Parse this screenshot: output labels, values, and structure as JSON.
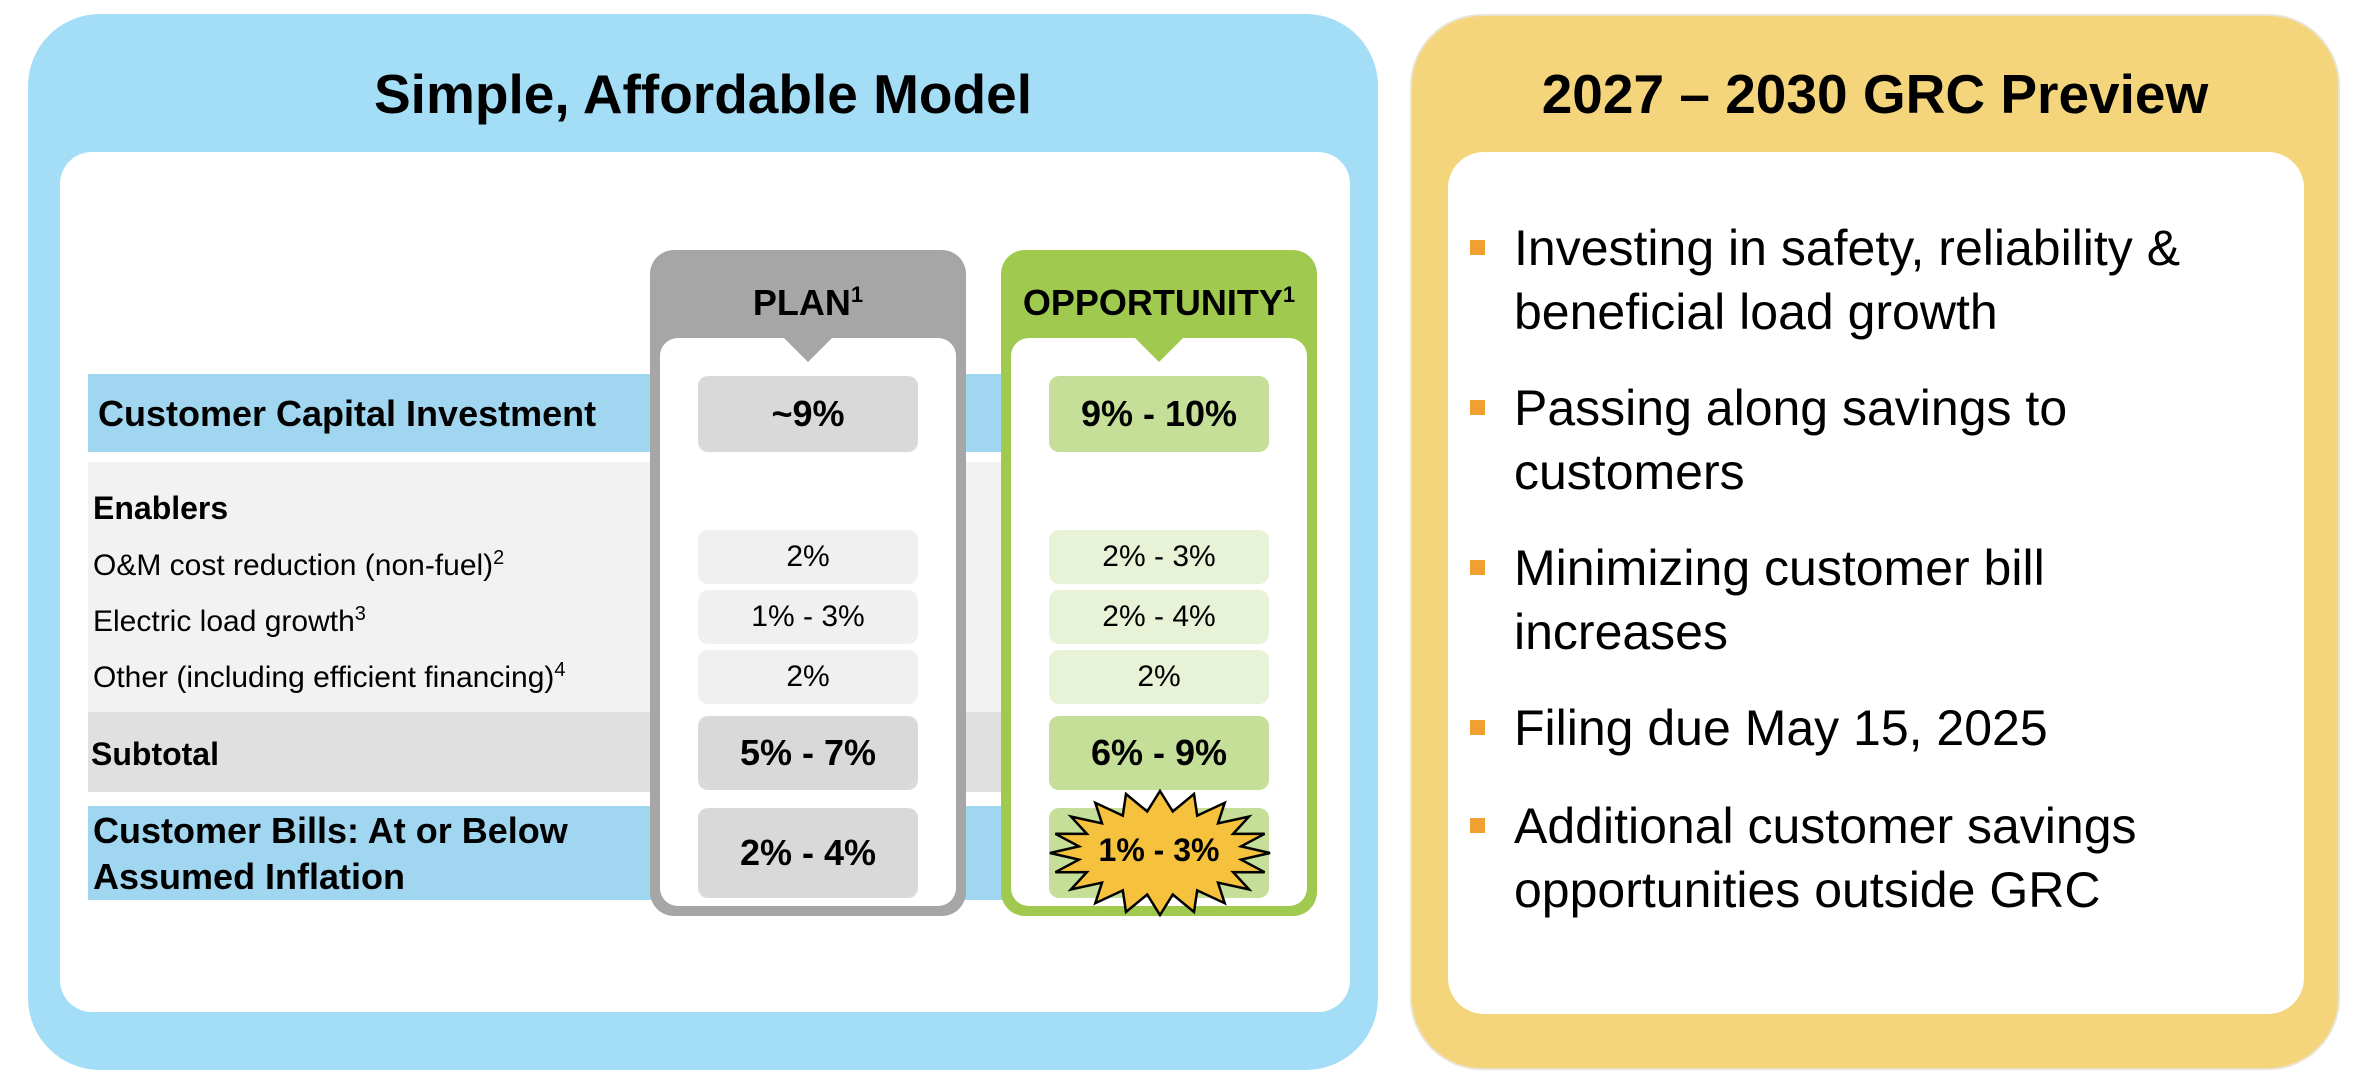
{
  "left": {
    "title": "Simple, Affordable Model",
    "plan_header": "PLAN",
    "plan_footnote": "1",
    "opportunity_header": "OPPORTUNITY",
    "opportunity_footnote": "1",
    "rows": {
      "capital": {
        "label": "Customer Capital Investment",
        "plan": "~9%",
        "opportunity": "9% - 10%"
      },
      "enablers_heading": "Enablers",
      "om": {
        "label": "O&M cost reduction (non-fuel)",
        "footnote": "2",
        "plan": "2%",
        "opportunity": "2% - 3%"
      },
      "load": {
        "label": "Electric load growth",
        "footnote": "3",
        "plan": "1% - 3%",
        "opportunity": "2% - 4%"
      },
      "other": {
        "label": "Other (including efficient financing)",
        "footnote": "4",
        "plan": "2%",
        "opportunity": "2%"
      },
      "subtotal": {
        "label": "Subtotal",
        "plan": "5% - 7%",
        "opportunity": "6% - 9%"
      },
      "bills": {
        "label_line1": "Customer Bills: At or Below",
        "label_line2": "Assumed Inflation",
        "plan": "2% - 4%",
        "opportunity": "1% - 3%"
      }
    }
  },
  "right": {
    "title": "2027 – 2030 GRC Preview",
    "bullets": [
      {
        "line1": "Investing in safety, reliability &",
        "line2": "beneficial load growth"
      },
      {
        "line1": "Passing along savings to",
        "line2": "customers"
      },
      {
        "line1": "Minimizing customer bill",
        "line2": "increases"
      },
      {
        "line1": "Filing due May 15, 2025",
        "line2": ""
      },
      {
        "line1": "Additional customer savings",
        "line2": "opportunities outside GRC"
      }
    ]
  },
  "colors": {
    "left_panel": "#a4ddf6",
    "right_panel": "#f4d57c",
    "plan_frame": "#a6a6a6",
    "opportunity_frame": "#9fca4f",
    "bullet": "#f0a030",
    "starburst": "#f6c23e"
  }
}
